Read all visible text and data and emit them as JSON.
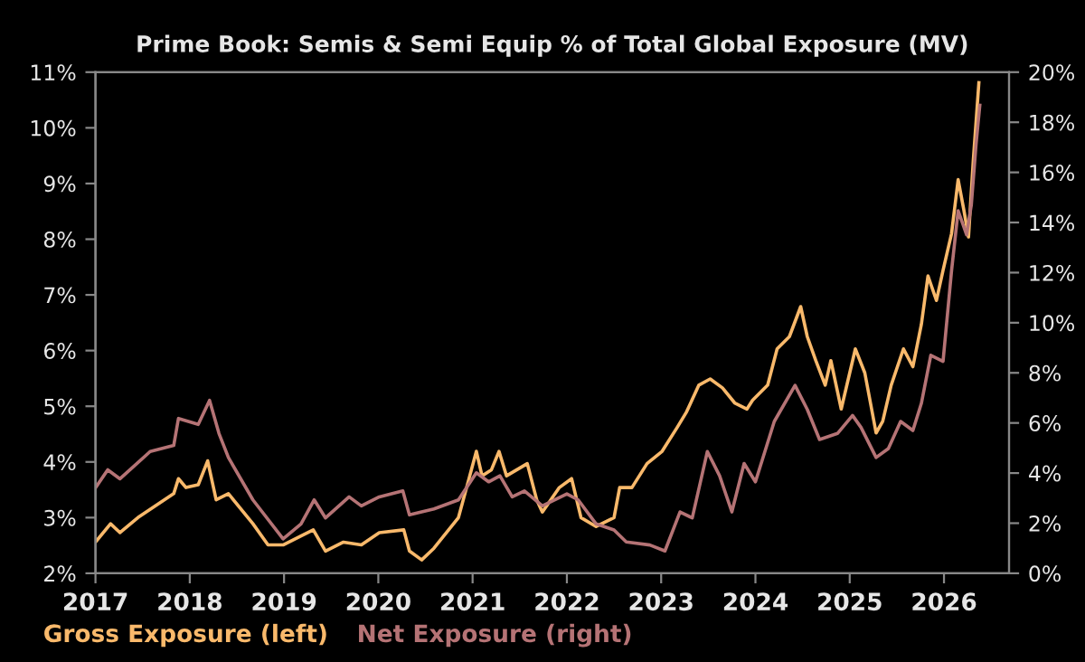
{
  "chart_data": {
    "type": "line",
    "title": "Prime Book: Semis & Semi Equip % of Total Global Exposure (MV)",
    "xlim": [
      2017,
      2026.69
    ],
    "xticks": [
      2017,
      2018,
      2019,
      2020,
      2021,
      2022,
      2023,
      2024,
      2025,
      2026
    ],
    "ylim": [
      2,
      11
    ],
    "yticks": [
      {
        "value": 2,
        "label": "2%"
      },
      {
        "value": 3,
        "label": "3%"
      },
      {
        "value": 4,
        "label": "4%"
      },
      {
        "value": 5,
        "label": "5%"
      },
      {
        "value": 6,
        "label": "6%"
      },
      {
        "value": 7,
        "label": "7%"
      },
      {
        "value": 8,
        "label": "8%"
      },
      {
        "value": 9,
        "label": "9%"
      },
      {
        "value": 10,
        "label": "10%"
      },
      {
        "value": 11,
        "label": "11%"
      }
    ],
    "y2lim": [
      0,
      20
    ],
    "y2ticks": [
      {
        "value": 0,
        "label": "0%"
      },
      {
        "value": 2,
        "label": "2%"
      },
      {
        "value": 4,
        "label": "4%"
      },
      {
        "value": 6,
        "label": "6%"
      },
      {
        "value": 8,
        "label": "8%"
      },
      {
        "value": 10,
        "label": "10%"
      },
      {
        "value": 12,
        "label": "12%"
      },
      {
        "value": 14,
        "label": "14%"
      },
      {
        "value": 16,
        "label": "16%"
      },
      {
        "value": 18,
        "label": "18%"
      },
      {
        "value": 20,
        "label": "20%"
      }
    ],
    "grid": false,
    "legend": "bottom left",
    "marker": "none",
    "line_style": "solid",
    "series": [
      {
        "name": "Gross Exposure (left)",
        "color": "#f9b96b",
        "axis": "y",
        "x": [
          2017.0,
          2017.16,
          2017.26,
          2017.45,
          2017.83,
          2017.88,
          2017.96,
          2018.09,
          2018.19,
          2018.28,
          2018.41,
          2018.67,
          2018.83,
          2018.99,
          2019.18,
          2019.31,
          2019.44,
          2019.63,
          2019.82,
          2020.01,
          2020.27,
          2020.33,
          2020.46,
          2020.59,
          2020.85,
          2021.04,
          2021.1,
          2021.2,
          2021.28,
          2021.36,
          2021.58,
          2021.68,
          2021.74,
          2021.92,
          2022.05,
          2022.15,
          2022.31,
          2022.5,
          2022.56,
          2022.69,
          2022.85,
          2023.01,
          2023.17,
          2023.27,
          2023.4,
          2023.52,
          2023.65,
          2023.78,
          2023.91,
          2023.97,
          2024.13,
          2024.23,
          2024.36,
          2024.48,
          2024.55,
          2024.64,
          2024.74,
          2024.8,
          2024.91,
          2025.06,
          2025.16,
          2025.28,
          2025.35,
          2025.44,
          2025.57,
          2025.67,
          2025.76,
          2025.83,
          2025.92,
          2025.99,
          2026.08,
          2026.15,
          2026.21,
          2026.26,
          2026.31,
          2026.37
        ],
        "values": [
          2.56,
          2.89,
          2.73,
          3.0,
          3.43,
          3.7,
          3.54,
          3.59,
          4.02,
          3.32,
          3.43,
          2.89,
          2.51,
          2.51,
          2.67,
          2.78,
          2.4,
          2.56,
          2.51,
          2.73,
          2.78,
          2.4,
          2.24,
          2.45,
          3.0,
          4.19,
          3.75,
          3.86,
          4.19,
          3.75,
          3.97,
          3.32,
          3.1,
          3.54,
          3.7,
          3.0,
          2.84,
          3.0,
          3.54,
          3.54,
          3.97,
          4.19,
          4.62,
          4.9,
          5.38,
          5.49,
          5.33,
          5.06,
          4.95,
          5.11,
          5.38,
          6.03,
          6.25,
          6.79,
          6.25,
          5.82,
          5.38,
          5.82,
          4.95,
          6.03,
          5.6,
          4.52,
          4.73,
          5.38,
          6.03,
          5.71,
          6.47,
          7.34,
          6.9,
          7.44,
          8.1,
          9.07,
          8.53,
          8.04,
          9.4,
          10.81
        ]
      },
      {
        "name": "Net Exposure (right)",
        "color": "#b57375",
        "axis": "y2",
        "x": [
          2017.0,
          2017.13,
          2017.26,
          2017.58,
          2017.83,
          2017.88,
          2018.09,
          2018.21,
          2018.31,
          2018.41,
          2018.67,
          2018.99,
          2019.18,
          2019.32,
          2019.44,
          2019.69,
          2019.82,
          2020.01,
          2020.26,
          2020.33,
          2020.59,
          2020.85,
          2021.04,
          2021.17,
          2021.29,
          2021.42,
          2021.55,
          2021.74,
          2022.0,
          2022.12,
          2022.31,
          2022.5,
          2022.63,
          2022.88,
          2023.04,
          2023.2,
          2023.33,
          2023.49,
          2023.62,
          2023.75,
          2023.88,
          2024.0,
          2024.2,
          2024.42,
          2024.55,
          2024.68,
          2024.87,
          2025.03,
          2025.12,
          2025.28,
          2025.41,
          2025.54,
          2025.67,
          2025.76,
          2025.86,
          2025.99,
          2026.08,
          2026.15,
          2026.24,
          2026.29,
          2026.34,
          2026.38
        ],
        "values": [
          3.41,
          4.13,
          3.77,
          4.86,
          5.1,
          6.18,
          5.94,
          6.9,
          5.58,
          4.62,
          2.93,
          1.37,
          1.97,
          2.93,
          2.21,
          3.05,
          2.69,
          3.05,
          3.29,
          2.33,
          2.57,
          2.93,
          4.01,
          3.65,
          3.89,
          3.05,
          3.29,
          2.69,
          3.17,
          2.93,
          1.97,
          1.73,
          1.25,
          1.13,
          0.89,
          2.45,
          2.21,
          4.86,
          3.89,
          2.45,
          4.38,
          3.65,
          6.06,
          7.5,
          6.54,
          5.34,
          5.58,
          6.3,
          5.82,
          4.62,
          4.98,
          6.06,
          5.7,
          6.78,
          8.7,
          8.46,
          12.07,
          14.47,
          13.51,
          14.71,
          17.12,
          18.68
        ]
      }
    ]
  }
}
